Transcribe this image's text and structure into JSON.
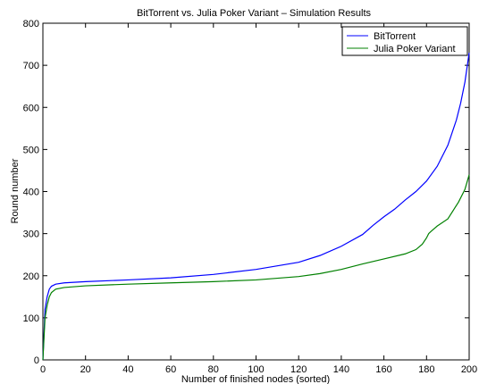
{
  "chart_data": {
    "type": "line",
    "title": "BitTorrent vs. Julia Poker Variant – Simulation Results",
    "xlabel": "Number of finished nodes (sorted)",
    "ylabel": "Round number",
    "xlim": [
      0,
      200
    ],
    "ylim": [
      0,
      800
    ],
    "xticks": [
      "0",
      "20",
      "40",
      "60",
      "80",
      "100",
      "120",
      "140",
      "160",
      "180",
      "200"
    ],
    "yticks": [
      "0",
      "100",
      "200",
      "300",
      "400",
      "500",
      "600",
      "700",
      "800"
    ],
    "grid": false,
    "legend_position": "top-right",
    "series": [
      {
        "name": "BitTorrent",
        "color": "#0000ff",
        "x": [
          0,
          1,
          2,
          3,
          4,
          6,
          10,
          20,
          40,
          60,
          80,
          100,
          120,
          130,
          140,
          150,
          155,
          160,
          165,
          170,
          175,
          180,
          185,
          190,
          192,
          194,
          196,
          198,
          200
        ],
        "y": [
          0,
          120,
          150,
          168,
          175,
          180,
          183,
          186,
          190,
          195,
          203,
          215,
          232,
          248,
          270,
          298,
          320,
          340,
          358,
          380,
          400,
          425,
          460,
          510,
          540,
          570,
          610,
          660,
          730
        ]
      },
      {
        "name": "Julia Poker Variant",
        "color": "#008000",
        "x": [
          0,
          1,
          2,
          3,
          4,
          6,
          10,
          20,
          40,
          60,
          80,
          100,
          120,
          130,
          140,
          150,
          160,
          170,
          175,
          178,
          180,
          181,
          182,
          185,
          190,
          195,
          198,
          200
        ],
        "y": [
          0,
          100,
          130,
          150,
          160,
          168,
          172,
          176,
          180,
          183,
          186,
          190,
          198,
          205,
          215,
          228,
          240,
          252,
          262,
          275,
          290,
          300,
          305,
          318,
          335,
          375,
          405,
          440
        ]
      }
    ]
  }
}
